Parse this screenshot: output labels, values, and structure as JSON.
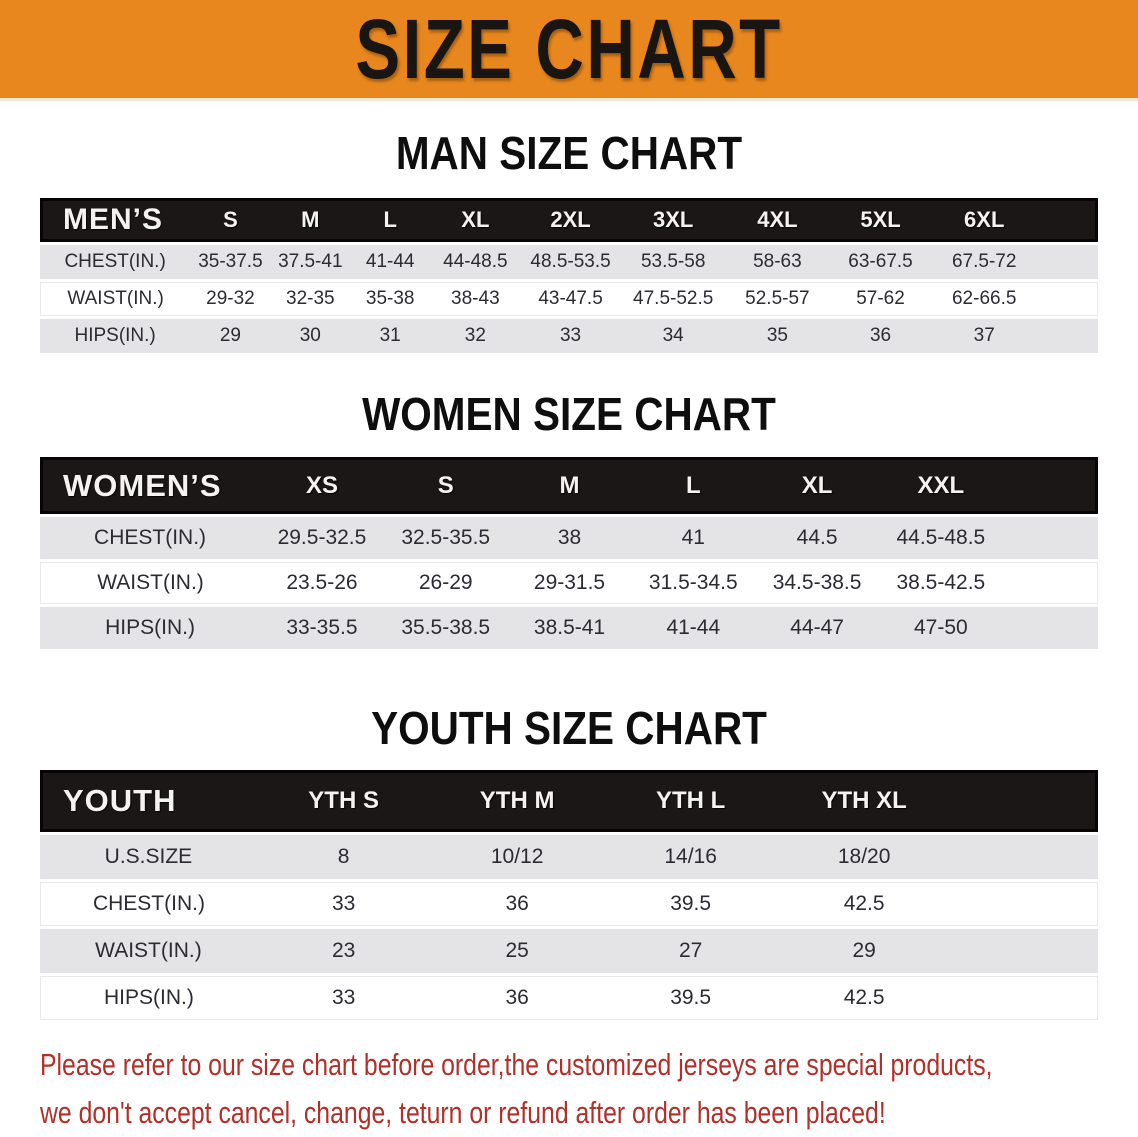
{
  "banner": {
    "title": "SIZE CHART"
  },
  "colors": {
    "banner_bg": "#e8871e",
    "header_bar": "#1b1717",
    "row_shade": "#e4e4e6",
    "data_text": "#2b2b32",
    "disclaimer_text": "#b1302a"
  },
  "sections": [
    {
      "heading": "MAN SIZE CHART",
      "table": {
        "label": "MEN’S",
        "columns": [
          "S",
          "M",
          "L",
          "XL",
          "2XL",
          "3XL",
          "4XL",
          "5XL",
          "6XL"
        ],
        "rows": [
          {
            "label": "CHEST(IN.)",
            "values": [
              "35-37.5",
              "37.5-41",
              "41-44",
              "44-48.5",
              "48.5-53.5",
              "53.5-58",
              "58-63",
              "63-67.5",
              "67.5-72"
            ]
          },
          {
            "label": "WAIST(IN.)",
            "values": [
              "29-32",
              "32-35",
              "35-38",
              "38-43",
              "43-47.5",
              "47.5-52.5",
              "52.5-57",
              "57-62",
              "62-66.5"
            ]
          },
          {
            "label": "HIPS(IN.)",
            "values": [
              "29",
              "30",
              "31",
              "32",
              "33",
              "34",
              "35",
              "36",
              "37"
            ]
          }
        ]
      }
    },
    {
      "heading": "WOMEN SIZE CHART",
      "table": {
        "label": "WOMEN’S",
        "columns": [
          "XS",
          "S",
          "M",
          "L",
          "XL",
          "XXL"
        ],
        "rows": [
          {
            "label": "CHEST(IN.)",
            "values": [
              "29.5-32.5",
              "32.5-35.5",
              "38",
              "41",
              "44.5",
              "44.5-48.5"
            ]
          },
          {
            "label": "WAIST(IN.)",
            "values": [
              "23.5-26",
              "26-29",
              "29-31.5",
              "31.5-34.5",
              "34.5-38.5",
              "38.5-42.5"
            ]
          },
          {
            "label": "HIPS(IN.)",
            "values": [
              "33-35.5",
              "35.5-38.5",
              "38.5-41",
              "41-44",
              "44-47",
              "47-50"
            ]
          }
        ]
      }
    },
    {
      "heading": "YOUTH SIZE CHART",
      "table": {
        "label": "YOUTH",
        "columns": [
          "YTH S",
          "YTH M",
          "YTH L",
          "YTH XL"
        ],
        "rows": [
          {
            "label": "U.S.SIZE",
            "values": [
              "8",
              "10/12",
              "14/16",
              "18/20"
            ]
          },
          {
            "label": "CHEST(IN.)",
            "values": [
              "33",
              "36",
              "39.5",
              "42.5"
            ]
          },
          {
            "label": "WAIST(IN.)",
            "values": [
              "23",
              "25",
              "27",
              "29"
            ]
          },
          {
            "label": "HIPS(IN.)",
            "values": [
              "33",
              "36",
              "39.5",
              "42.5"
            ]
          }
        ]
      }
    }
  ],
  "disclaimer": {
    "line1": "Please refer to our size chart before order,the customized jerseys are special products,",
    "line2": "we don't accept cancel, change, teturn or refund after order has been placed!"
  }
}
